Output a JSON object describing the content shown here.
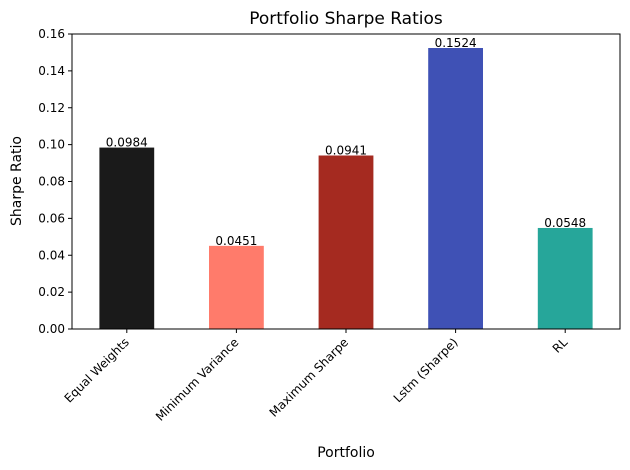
{
  "chart_data": {
    "type": "bar",
    "title": "Portfolio Sharpe Ratios",
    "xlabel": "Portfolio",
    "ylabel": "Sharpe Ratio",
    "ylim": [
      0,
      0.16
    ],
    "yticks": [
      "0.00",
      "0.02",
      "0.04",
      "0.06",
      "0.08",
      "0.10",
      "0.12",
      "0.14",
      "0.16"
    ],
    "grid": false,
    "legend": "none",
    "categories": [
      "Equal Weights",
      "Minimum Variance",
      "Maximum Sharpe",
      "Lstm (Sharpe)",
      "RL"
    ],
    "values": [
      0.0984,
      0.0451,
      0.0941,
      0.1524,
      0.0548
    ],
    "value_labels": [
      "0.0984",
      "0.0451",
      "0.0941",
      "0.1524",
      "0.0548"
    ],
    "colors": [
      "#1a1a1a",
      "#ff7b6b",
      "#a52a20",
      "#3f51b5",
      "#26a69a"
    ]
  }
}
